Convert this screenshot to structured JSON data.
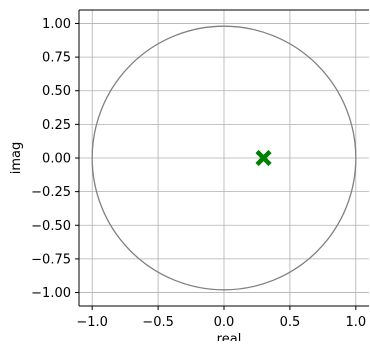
{
  "chart_data": {
    "type": "scatter",
    "xlabel": "real",
    "ylabel": "imag",
    "xlim": [
      -1.1,
      1.1
    ],
    "ylim": [
      -1.1,
      1.1
    ],
    "grid": true,
    "x_ticks": [
      -1.0,
      -0.5,
      0.0,
      0.5,
      1.0
    ],
    "x_tick_labels": [
      "−1.0",
      "−0.5",
      "0.0",
      "0.5",
      "1.0"
    ],
    "y_ticks": [
      1.0,
      0.75,
      0.5,
      0.25,
      0.0,
      -0.25,
      -0.5,
      -0.75,
      -1.0
    ],
    "y_tick_labels": [
      "1.00",
      "0.75",
      "0.50",
      "0.25",
      "0.00",
      "−0.25",
      "−0.50",
      "−0.75",
      "−1.00"
    ],
    "unit_circle": {
      "center": [
        0,
        0
      ],
      "radius": 1,
      "color": "#808080"
    },
    "series": [
      {
        "marker": "x",
        "color": "#008000",
        "points": [
          [
            0.3,
            0.0
          ]
        ]
      }
    ]
  }
}
